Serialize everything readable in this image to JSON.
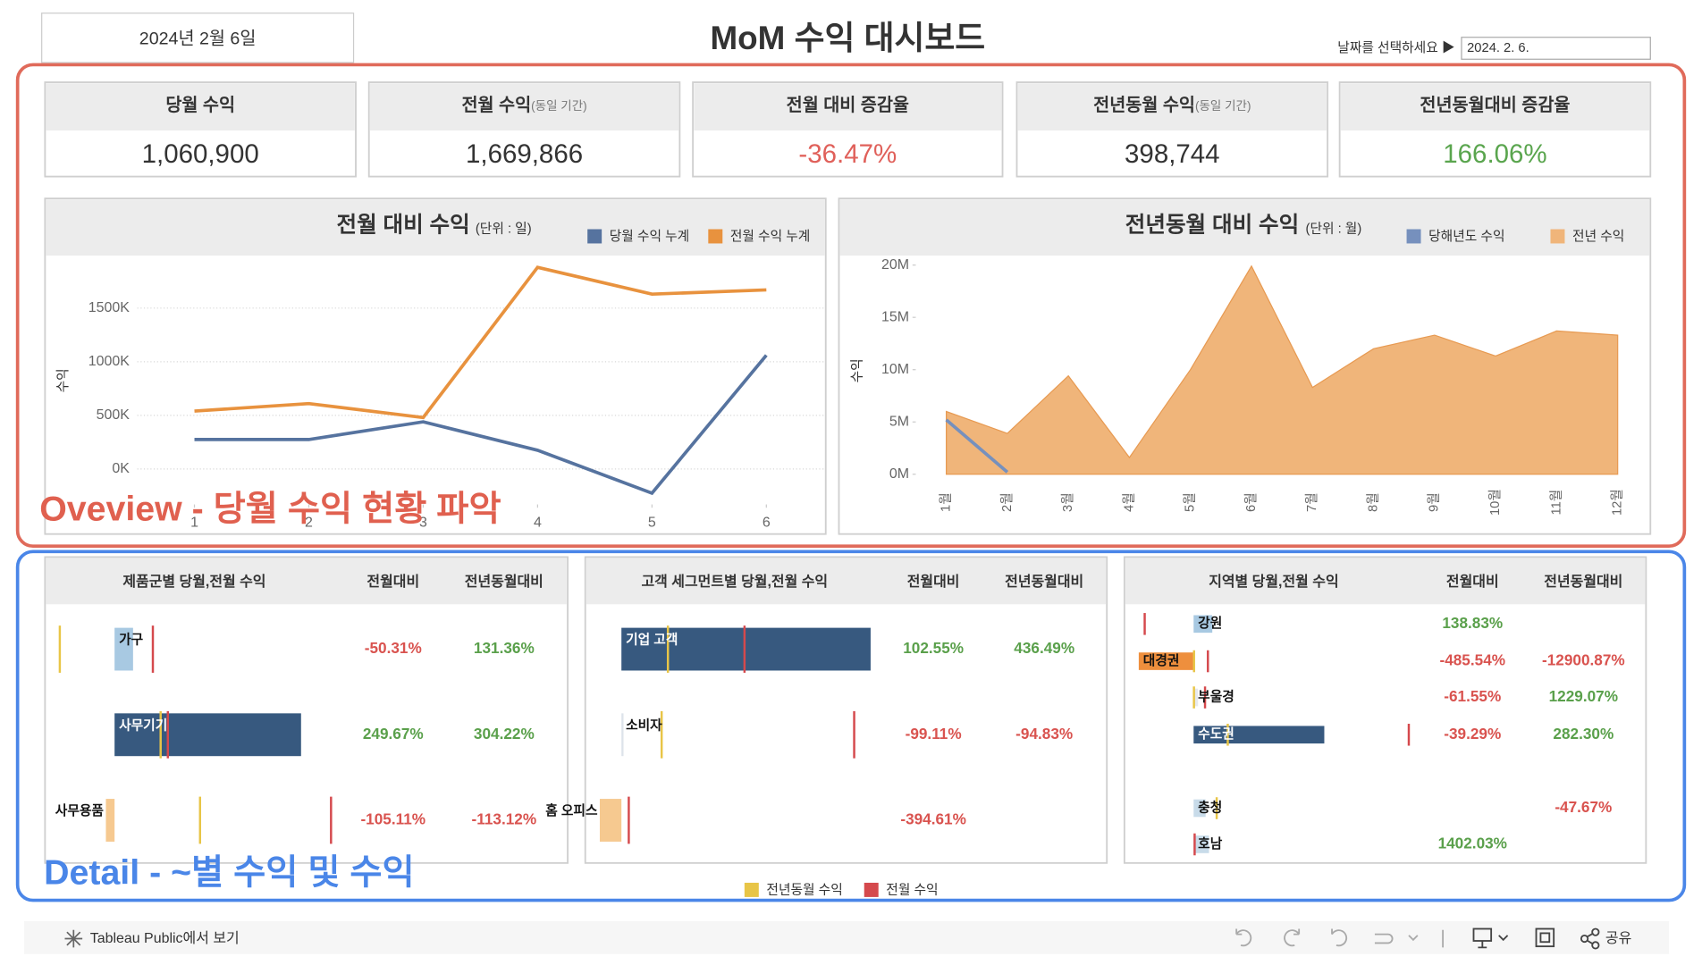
{
  "header": {
    "date_box": "2024년 2월 6일",
    "title": "MoM 수익 대시보드",
    "date_prompt": "날짜를 선택하세요 ▶",
    "date_value": "2024. 2. 6."
  },
  "kpis": [
    {
      "label": "당월 수익",
      "value": "1,060,900",
      "color": "#333333"
    },
    {
      "label": "전월 수익",
      "note": "(동일 기간)",
      "value": "1,669,866",
      "color": "#333333"
    },
    {
      "label": "전월 대비 증감율",
      "value": "-36.47%",
      "color": "#e0605a"
    },
    {
      "label": "전년동월 수익",
      "note": "(동일 기간)",
      "value": "398,744",
      "color": "#333333"
    },
    {
      "label": "전년동월대비 증감율",
      "value": "166.06%",
      "color": "#5aa54e"
    }
  ],
  "annotations": {
    "overview": "Oveview - 당월 수익 현황 파악",
    "detail": "Detail - ~별 수익 및 수익"
  },
  "chart_data": [
    {
      "type": "line",
      "title": "전월 대비 수익",
      "unit": "(단위 : 일)",
      "y_label": "수익",
      "x": [
        1,
        2,
        3,
        4,
        5,
        6
      ],
      "xlim": [
        0.5,
        6.5
      ],
      "xticks": [
        1,
        2,
        3,
        4,
        5,
        6
      ],
      "ylim": [
        -330000,
        1980000
      ],
      "yticks": [
        {
          "value": 0,
          "label": "0K"
        },
        {
          "value": 500000,
          "label": "500K"
        },
        {
          "value": 1000000,
          "label": "1000K"
        },
        {
          "value": 1500000,
          "label": "1500K"
        }
      ],
      "grid": true,
      "series": [
        {
          "name": "당월 수익 누계",
          "color": "#56739f",
          "values": [
            275000,
            275000,
            440000,
            175000,
            -225000,
            1060900
          ]
        },
        {
          "name": "전월 수익 누계",
          "color": "#e8923e",
          "values": [
            540000,
            610000,
            480000,
            1880000,
            1630000,
            1669866
          ]
        }
      ]
    },
    {
      "type": "area",
      "title": "전년동월 대비 수익",
      "unit": "(단위 : 월)",
      "y_label": "수익",
      "categories": [
        "1월",
        "2월",
        "3월",
        "4월",
        "5월",
        "6월",
        "7월",
        "8월",
        "9월",
        "10월",
        "11월",
        "12월"
      ],
      "ylim": [
        -1000000,
        20600000
      ],
      "yticks": [
        {
          "value": 0,
          "label": "0M"
        },
        {
          "value": 5000000,
          "label": "5M"
        },
        {
          "value": 10000000,
          "label": "10M"
        },
        {
          "value": 15000000,
          "label": "15M"
        },
        {
          "value": 20000000,
          "label": "20M"
        }
      ],
      "series": [
        {
          "name": "당해년도 수익",
          "color": "#7690bd",
          "style": "line",
          "values": [
            5200000,
            200000,
            null,
            null,
            null,
            null,
            null,
            null,
            null,
            null,
            null,
            null
          ]
        },
        {
          "name": "전년 수익",
          "color": "#f0b57a",
          "style": "area",
          "values": [
            6000000,
            3900000,
            9400000,
            1600000,
            10000000,
            19900000,
            8300000,
            12000000,
            13300000,
            11300000,
            13700000,
            13300000
          ]
        }
      ]
    },
    {
      "type": "bar_table",
      "title": "제품군별 당월,전월 수익",
      "columns": [
        "전월대비",
        "전년동월대비"
      ],
      "categories": [
        "가구",
        "사무기기",
        "사무용품"
      ],
      "xlim": [
        -370000,
        1280000
      ],
      "values": [
        100000,
        1008000,
        -47000
      ],
      "colors": [
        "#a8c9e2",
        "#37597f",
        "#f6c990"
      ],
      "prev_year": [
        -296000,
        249000,
        462000
      ],
      "prev_month": [
        207000,
        288000,
        1170000
      ],
      "mom_labels": [
        "-50.31%",
        "249.67%",
        "-105.11%"
      ],
      "yoy_labels": [
        "131.36%",
        "304.22%",
        "-113.12%"
      ]
    },
    {
      "type": "bar_table",
      "title": "고객 세그먼트별 당월,전월 수익",
      "columns": [
        "전월대비",
        "전년동월대비"
      ],
      "categories": [
        "기업 고객",
        "소비자",
        "홈 오피스"
      ],
      "xlim": [
        -157000,
        1239000
      ],
      "values": [
        1152000,
        9600,
        -100000
      ],
      "colors": [
        "#37597f",
        "#dde3ea",
        "#f6c990"
      ],
      "prev_year": [
        215000,
        186000,
        null
      ],
      "prev_month": [
        569000,
        1076000,
        34000
      ],
      "mom_labels": [
        "102.55%",
        "-99.11%",
        "-394.61%"
      ],
      "yoy_labels": [
        "436.49%",
        "-94.83%",
        null
      ]
    },
    {
      "type": "bar_table",
      "title": "지역별 당월,전월 수익",
      "columns": [
        "전월대비",
        "전년동월대비"
      ],
      "categories": [
        "강원",
        "대경권",
        "부울경",
        "수도권",
        "충청",
        "호남"
      ],
      "xlim": [
        -526000,
        1965000
      ],
      "values": [
        157000,
        -461000,
        37000,
        1098000,
        101000,
        129000
      ],
      "colors": [
        "#a8c9e2",
        "#ee8f3d",
        "#e6e9ee",
        "#37597f",
        "#c8dbe9",
        "#c8dbe9"
      ],
      "prev_year": [
        null,
        3600,
        2800,
        287000,
        194000,
        null
      ],
      "prev_month": [
        -411000,
        120000,
        96000,
        1808000,
        null,
        8600
      ],
      "mom_labels": [
        "138.83%",
        "-485.54%",
        "-61.55%",
        "-39.29%",
        null,
        "1402.03%"
      ],
      "yoy_labels": [
        null,
        "-12900.87%",
        "1229.07%",
        "282.30%",
        "-47.67%",
        null
      ]
    }
  ],
  "detail_legend": [
    {
      "name": "전년동월 수익",
      "color": "#e8c547"
    },
    {
      "name": "전월 수익",
      "color": "#d5494d"
    }
  ],
  "toolbar": {
    "view_link": "Tableau Public에서 보기",
    "share": "공유"
  }
}
